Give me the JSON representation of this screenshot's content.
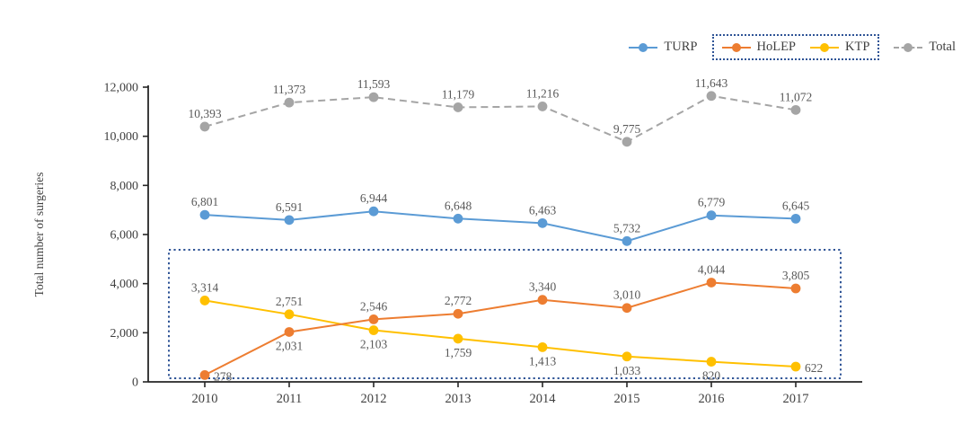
{
  "figure": {
    "background": "#ffffff"
  },
  "chart_data": {
    "type": "line",
    "title": "",
    "categories": [
      "2010",
      "2011",
      "2012",
      "2013",
      "2014",
      "2015",
      "2016",
      "2017"
    ],
    "series": [
      {
        "name": "TURP",
        "color": "#5B9BD5",
        "line_style": "solid",
        "values": [
          6801,
          6591,
          6944,
          6648,
          6463,
          5732,
          6779,
          6645
        ],
        "data_labels": [
          "6,801",
          "6,591",
          "6,944",
          "6,648",
          "6,463",
          "5,732",
          "6,779",
          "6,645"
        ],
        "label_placement": [
          "above",
          "above",
          "above",
          "above",
          "above",
          "above",
          "above",
          "above"
        ]
      },
      {
        "name": "HoLEP",
        "color": "#ED7D31",
        "line_style": "solid",
        "values": [
          278,
          2031,
          2546,
          2772,
          3340,
          3010,
          4044,
          3805
        ],
        "data_labels": [
          "278",
          "2,031",
          "2,546",
          "2,772",
          "3,340",
          "3,010",
          "4,044",
          "3,805"
        ],
        "label_placement": [
          "right",
          "below",
          "above",
          "above",
          "above",
          "above",
          "above",
          "above"
        ]
      },
      {
        "name": "KTP",
        "color": "#FFC000",
        "line_style": "solid",
        "values": [
          3314,
          2751,
          2103,
          1759,
          1413,
          1033,
          820,
          622
        ],
        "data_labels": [
          "3,314",
          "2,751",
          "2,103",
          "1,759",
          "1,413",
          "1,033",
          "820",
          "622"
        ],
        "label_placement": [
          "above",
          "above",
          "below",
          "below",
          "below",
          "below",
          "below",
          "right"
        ]
      },
      {
        "name": "Total",
        "color": "#A5A5A5",
        "line_style": "dashed",
        "values": [
          10393,
          11373,
          11593,
          11179,
          11216,
          9775,
          11643,
          11072
        ],
        "data_labels": [
          "10,393",
          "11,373",
          "11,593",
          "11,179",
          "11,216",
          "9,775",
          "11,643",
          "11,072"
        ],
        "label_placement": [
          "above",
          "above",
          "above",
          "above",
          "above",
          "above",
          "above",
          "above"
        ]
      }
    ],
    "xlabel": "",
    "ylabel": "Total number of surgeries",
    "ylim": [
      0,
      12000
    ],
    "yticks": [
      0,
      2000,
      4000,
      6000,
      8000,
      10000,
      12000
    ],
    "ytick_labels": [
      "0",
      "2,000",
      "4,000",
      "6,000",
      "8,000",
      "10,000",
      "12,000"
    ],
    "grid": false,
    "legend_position": "top-right",
    "legend": {
      "order": [
        "TURP",
        "HoLEP",
        "KTP",
        "Total"
      ],
      "boxed_entries": [
        "HoLEP",
        "KTP"
      ]
    },
    "annotations": {
      "highlight_box": {
        "description": "dotted rectangle highlighting the HoLEP and KTP series region",
        "color": "#2F5496"
      },
      "legend_box": {
        "description": "dotted rectangle around the HoLEP and KTP legend entries",
        "color": "#2F5496"
      }
    },
    "colors": {
      "data_label_text": "#595959",
      "axis_line": "#262626",
      "axis_text": "#404040"
    }
  }
}
